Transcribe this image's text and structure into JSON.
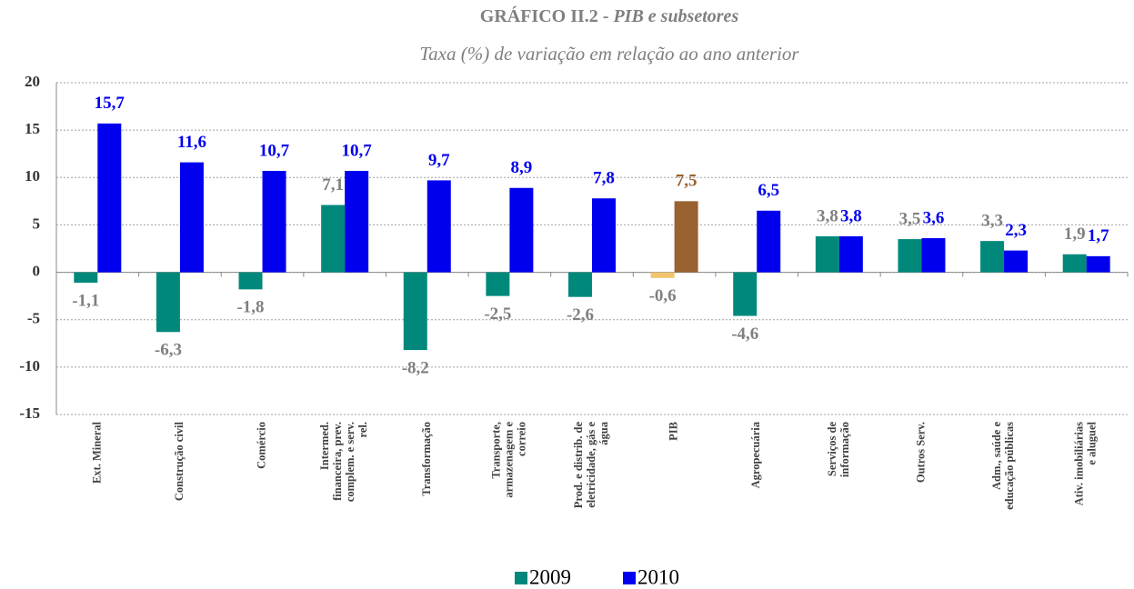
{
  "chart_data": {
    "type": "bar",
    "title": [
      "GRÁFICO II.2 -",
      "PIB e subsetores"
    ],
    "subtitle": "Taxa (%) de variação em relação ao ano anterior",
    "categories": [
      "Ext. Mineral",
      "Construção civil",
      "Comércio",
      "Intermed.\nfinanceira, prev.\ncomplem. e serv.\nrel.",
      "Transformação",
      "Transporte,\narmazenagem e\ncorreio",
      "Prod. e distrib. de\neletricidade, gás e\nágua",
      "PIB",
      "Agropecuária",
      "Serviços de\ninformação",
      "Outros Serv.",
      "Adm., saúde e\neducação públicas",
      "Ativ. imobiliárias\ne aluguel"
    ],
    "series": [
      {
        "name": "2009",
        "color": "#00897b",
        "values": [
          -1.1,
          -6.3,
          -1.8,
          7.1,
          -8.2,
          -2.5,
          -2.6,
          -0.6,
          -4.6,
          3.8,
          3.5,
          3.3,
          1.9
        ],
        "value_labels": [
          "-1,1",
          "-6,3",
          "-1,8",
          "7,1",
          "-8,2",
          "-2,5",
          "-2,6",
          "-0,6",
          "-4,6",
          "3,8",
          "3,5",
          "3,3",
          "1,9"
        ],
        "colors": [
          "#00897b",
          "#00897b",
          "#00897b",
          "#00897b",
          "#00897b",
          "#00897b",
          "#00897b",
          "#f2c46d",
          "#00897b",
          "#00897b",
          "#00897b",
          "#00897b",
          "#00897b"
        ],
        "label_colors": [
          "#7f7f7f",
          "#7f7f7f",
          "#7f7f7f",
          "#7f7f7f",
          "#7f7f7f",
          "#7f7f7f",
          "#7f7f7f",
          "#7f7f7f",
          "#7f7f7f",
          "#7f7f7f",
          "#7f7f7f",
          "#7f7f7f",
          "#7f7f7f"
        ]
      },
      {
        "name": "2010",
        "color": "#0000ee",
        "values": [
          15.7,
          11.6,
          10.7,
          10.7,
          9.7,
          8.9,
          7.8,
          7.5,
          6.5,
          3.8,
          3.6,
          2.3,
          1.7
        ],
        "value_labels": [
          "15,7",
          "11,6",
          "10,7",
          "10,7",
          "9,7",
          "8,9",
          "7,8",
          "7,5",
          "6,5",
          "3,8",
          "3,6",
          "2,3",
          "1,7"
        ],
        "colors": [
          "#0000ee",
          "#0000ee",
          "#0000ee",
          "#0000ee",
          "#0000ee",
          "#0000ee",
          "#0000ee",
          "#9a6230",
          "#0000ee",
          "#0000ee",
          "#0000ee",
          "#0000ee",
          "#0000ee"
        ],
        "label_colors": [
          "#0000ee",
          "#0000ee",
          "#0000ee",
          "#0000ee",
          "#0000ee",
          "#0000ee",
          "#0000ee",
          "#9a6230",
          "#0000ee",
          "#0000ee",
          "#0000ee",
          "#0000ee",
          "#0000ee"
        ]
      }
    ],
    "ylim": [
      -15,
      20
    ],
    "yticks": [
      -15,
      -10,
      -5,
      0,
      5,
      10,
      15,
      20
    ],
    "grid": true
  }
}
